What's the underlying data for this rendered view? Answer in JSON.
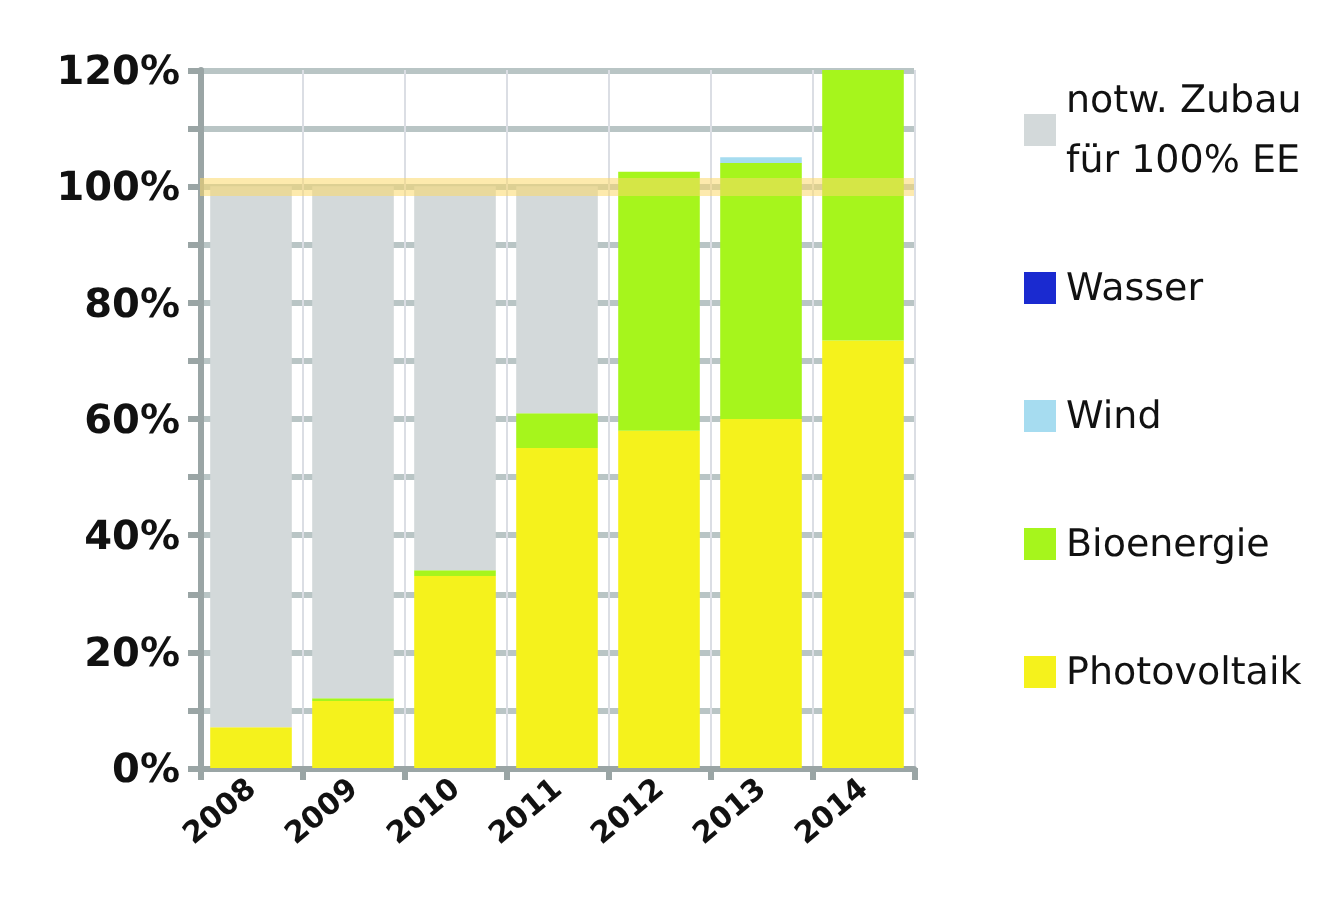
{
  "chart_data": {
    "type": "bar",
    "stacked": true,
    "categories": [
      "2008",
      "2009",
      "2010",
      "2011",
      "2012",
      "2013",
      "2014"
    ],
    "series": [
      {
        "name": "Photovoltaik",
        "color": "#f5f21c",
        "values": [
          7,
          11.5,
          33,
          55,
          58,
          60,
          73.5
        ]
      },
      {
        "name": "Bioenergie",
        "color": "#a6f51c",
        "values": [
          0,
          0.5,
          1,
          6,
          44.5,
          44,
          46.5
        ]
      },
      {
        "name": "Wind",
        "color": "#a6dcf0",
        "values": [
          0,
          0,
          0,
          0,
          0,
          1,
          0
        ]
      },
      {
        "name": "Wasser",
        "color": "#1a2ad0",
        "values": [
          0,
          0,
          0,
          0,
          0,
          0,
          0
        ]
      },
      {
        "name": "notw. Zubau für 100% EE",
        "color": "#d3d9da",
        "values": [
          93,
          88,
          66,
          39,
          0,
          0,
          0
        ]
      }
    ],
    "ylim": [
      0,
      120
    ],
    "yticks": [
      {
        "value": 0,
        "label": "0%"
      },
      {
        "value": 10,
        "label": null
      },
      {
        "value": 20,
        "label": "20%"
      },
      {
        "value": 30,
        "label": null
      },
      {
        "value": 40,
        "label": "40%"
      },
      {
        "value": 50,
        "label": null
      },
      {
        "value": 60,
        "label": "60%"
      },
      {
        "value": 70,
        "label": null
      },
      {
        "value": 80,
        "label": "80%"
      },
      {
        "value": 90,
        "label": null
      },
      {
        "value": 100,
        "label": "100%"
      },
      {
        "value": 110,
        "label": null
      },
      {
        "value": 120,
        "label": "120%"
      }
    ],
    "ref_lines": [
      {
        "axis": "y",
        "value": 100,
        "color": "#fbd86a"
      }
    ],
    "grid": true,
    "legend": "right"
  }
}
